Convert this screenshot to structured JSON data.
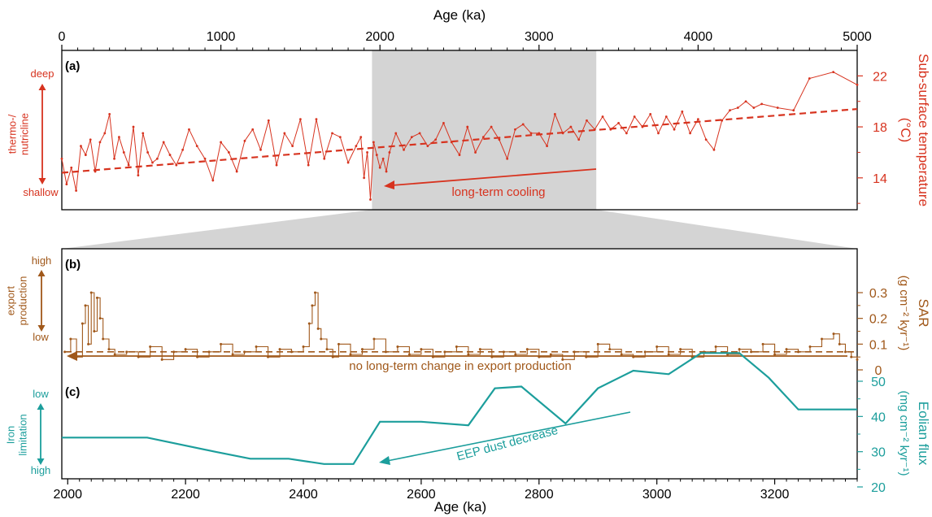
{
  "colors": {
    "red": "#d7331f",
    "brown": "#a0581a",
    "teal": "#1c9e9c",
    "shade": "#d4d4d4",
    "axis": "#000000"
  },
  "top_axis": {
    "label": "Age (ka)",
    "ticks": [
      "0",
      "1000",
      "2000",
      "3000",
      "4000",
      "5000"
    ]
  },
  "bottom_axis": {
    "label": "Age (ka)",
    "ticks": [
      "2000",
      "2200",
      "2400",
      "2600",
      "2800",
      "3000",
      "3200"
    ]
  },
  "panel_a": {
    "tag": "(a)",
    "y_title": "Sub-surface temperature",
    "y_unit": "(°C)",
    "ticks": [
      "14",
      "18",
      "22"
    ],
    "left_label_top": "deep",
    "left_label_mid": "thermo-/\nnutricline",
    "left_label_bottom": "shallow",
    "annotation": "long-term cooling"
  },
  "panel_b": {
    "tag": "(b)",
    "y_title": "SAR",
    "y_unit": "(g cm⁻² kyr⁻¹)",
    "ticks": [
      "0",
      "0.1",
      "0.2",
      "0.3"
    ],
    "left_label_top": "high",
    "left_label_mid": "export\nproduction",
    "left_label_bottom": "low",
    "annotation": "no long-term change in export production"
  },
  "panel_c": {
    "tag": "(c)",
    "y_title": "Eolian flux",
    "y_unit": "(mg cm⁻² kyr⁻¹)",
    "ticks": [
      "20",
      "30",
      "40",
      "50"
    ],
    "left_label_top": "low",
    "left_label_mid": "Iron\nlimitation",
    "left_label_bottom": "high",
    "annotation": "EEP dust decrease"
  },
  "chart_data": [
    {
      "type": "line",
      "panel": "a",
      "xlabel": "Age (ka)",
      "ylabel": "Sub-surface temperature (°C)",
      "xlim": [
        0,
        5000
      ],
      "ylim": [
        11.5,
        24
      ],
      "shaded_interval": [
        1950,
        3360
      ],
      "trend": {
        "x": [
          0,
          5000
        ],
        "y": [
          14.4,
          19.4
        ]
      },
      "x": [
        0,
        30,
        60,
        90,
        120,
        150,
        180,
        210,
        240,
        270,
        300,
        330,
        360,
        390,
        420,
        450,
        480,
        510,
        540,
        570,
        600,
        640,
        680,
        720,
        760,
        800,
        850,
        900,
        950,
        1000,
        1050,
        1100,
        1150,
        1200,
        1250,
        1300,
        1350,
        1400,
        1450,
        1500,
        1550,
        1600,
        1650,
        1700,
        1750,
        1800,
        1850,
        1880,
        1900,
        1920,
        1940,
        1960,
        1980,
        2000,
        2020,
        2040,
        2060,
        2100,
        2150,
        2200,
        2250,
        2300,
        2350,
        2400,
        2450,
        2500,
        2550,
        2600,
        2650,
        2700,
        2750,
        2800,
        2850,
        2900,
        2950,
        3000,
        3050,
        3100,
        3150,
        3200,
        3250,
        3300,
        3350,
        3400,
        3450,
        3500,
        3550,
        3600,
        3650,
        3700,
        3750,
        3800,
        3850,
        3900,
        3950,
        4000,
        4050,
        4100,
        4150,
        4200,
        4250,
        4300,
        4350,
        4400,
        4500,
        4600,
        4700,
        4850,
        5000
      ],
      "y": [
        15.5,
        13.5,
        14.8,
        13.0,
        16.5,
        15.8,
        17.0,
        14.5,
        16.8,
        17.5,
        19.0,
        15.5,
        17.2,
        16.0,
        15.0,
        18.0,
        14.2,
        17.5,
        16.0,
        15.2,
        15.5,
        16.8,
        15.8,
        15.0,
        16.2,
        17.8,
        16.5,
        15.5,
        13.8,
        16.8,
        16.0,
        14.5,
        16.9,
        17.8,
        16.2,
        18.5,
        15.0,
        17.5,
        16.5,
        18.6,
        15.0,
        18.6,
        15.5,
        17.5,
        17.2,
        15.2,
        16.5,
        17.2,
        14.0,
        16.0,
        12.3,
        16.8,
        15.8,
        14.8,
        15.5,
        14.5,
        16.0,
        17.5,
        16.2,
        17.2,
        17.5,
        16.5,
        17.0,
        18.3,
        16.8,
        15.8,
        18.0,
        16.0,
        17.2,
        18.0,
        17.0,
        15.5,
        17.8,
        18.2,
        17.5,
        17.5,
        16.5,
        19.0,
        17.5,
        18.0,
        17.0,
        18.5,
        17.8,
        18.8,
        17.8,
        18.3,
        17.5,
        18.8,
        18.0,
        19.0,
        17.5,
        18.8,
        17.8,
        19.2,
        17.5,
        18.6,
        17.0,
        16.2,
        18.5,
        19.3,
        19.5,
        20.0,
        19.5,
        19.8,
        19.5,
        19.3,
        21.8,
        22.3,
        21.3
      ]
    },
    {
      "type": "line",
      "panel": "b",
      "xlabel": "Age (ka)",
      "ylabel": "SAR (g cm⁻² kyr⁻¹)",
      "xlim": [
        1990,
        3340
      ],
      "ylim": [
        -0.02,
        0.35
      ],
      "mean_line": 0.07,
      "x": [
        1995,
        2005,
        2015,
        2025,
        2030,
        2035,
        2040,
        2045,
        2050,
        2055,
        2060,
        2070,
        2080,
        2100,
        2120,
        2140,
        2160,
        2180,
        2200,
        2220,
        2240,
        2260,
        2280,
        2300,
        2320,
        2340,
        2360,
        2380,
        2400,
        2410,
        2415,
        2420,
        2425,
        2430,
        2440,
        2450,
        2460,
        2480,
        2500,
        2520,
        2540,
        2560,
        2580,
        2600,
        2620,
        2640,
        2660,
        2680,
        2700,
        2720,
        2740,
        2760,
        2780,
        2800,
        2820,
        2840,
        2860,
        2880,
        2900,
        2920,
        2940,
        2960,
        2980,
        3000,
        3020,
        3040,
        3060,
        3080,
        3100,
        3120,
        3140,
        3160,
        3180,
        3200,
        3220,
        3240,
        3260,
        3280,
        3300,
        3310,
        3320,
        3330,
        3340
      ],
      "y": [
        0.07,
        0.12,
        0.05,
        0.18,
        0.25,
        0.1,
        0.3,
        0.15,
        0.28,
        0.2,
        0.12,
        0.08,
        0.06,
        0.07,
        0.05,
        0.09,
        0.04,
        0.07,
        0.08,
        0.05,
        0.07,
        0.1,
        0.06,
        0.07,
        0.09,
        0.05,
        0.08,
        0.07,
        0.09,
        0.18,
        0.25,
        0.3,
        0.16,
        0.12,
        0.08,
        0.05,
        0.1,
        0.06,
        0.08,
        0.12,
        0.07,
        0.09,
        0.06,
        0.08,
        0.05,
        0.07,
        0.09,
        0.06,
        0.08,
        0.05,
        0.07,
        0.06,
        0.08,
        0.05,
        0.06,
        0.04,
        0.07,
        0.05,
        0.1,
        0.08,
        0.06,
        0.05,
        0.07,
        0.09,
        0.06,
        0.08,
        0.05,
        0.07,
        0.09,
        0.06,
        0.08,
        0.07,
        0.1,
        0.06,
        0.08,
        0.07,
        0.09,
        0.12,
        0.14,
        0.1,
        0.07,
        0.05,
        0.04
      ]
    },
    {
      "type": "line",
      "panel": "c",
      "xlabel": "Age (ka)",
      "ylabel": "Eolian flux (mg cm⁻² kyr⁻¹)",
      "xlim": [
        1990,
        3340
      ],
      "ylim": [
        15,
        62
      ],
      "x": [
        1990,
        2135,
        2250,
        2310,
        2375,
        2435,
        2485,
        2530,
        2600,
        2680,
        2725,
        2770,
        2845,
        2900,
        2960,
        3020,
        3075,
        3140,
        3190,
        3240,
        3340
      ],
      "y": [
        34,
        34,
        30,
        28,
        28,
        26.5,
        26.5,
        38.5,
        38.5,
        37.5,
        48,
        48.5,
        38,
        48,
        53,
        52,
        58,
        58,
        51,
        42,
        42
      ]
    }
  ]
}
